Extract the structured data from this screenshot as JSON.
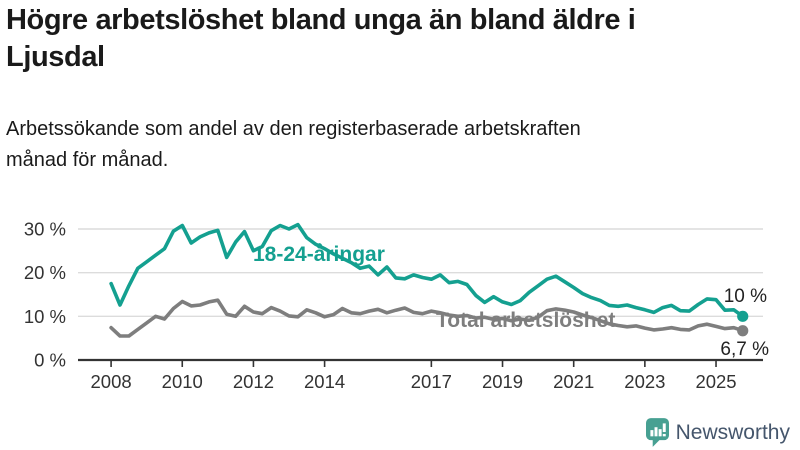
{
  "header": {
    "title": "Högre arbetslöshet bland unga än bland äldre i Ljusdal",
    "subtitle": "Arbetssökande som andel av den registerbaserade arbetskraften månad för månad."
  },
  "chart_data": {
    "type": "line",
    "unit": "%",
    "grid": "horizontal",
    "xlim": [
      2007.07,
      2026.32
    ],
    "ylim": [
      0,
      33
    ],
    "yticks": [
      {
        "value": 0,
        "label": "0 %"
      },
      {
        "value": 10,
        "label": "10 %"
      },
      {
        "value": 20,
        "label": "20 %"
      },
      {
        "value": 30,
        "label": "30 %"
      }
    ],
    "xticks": [
      {
        "value": 2008,
        "label": "2008"
      },
      {
        "value": 2010,
        "label": "2010"
      },
      {
        "value": 2012,
        "label": "2012"
      },
      {
        "value": 2014,
        "label": "2014"
      },
      {
        "value": 2017,
        "label": "2017"
      },
      {
        "value": 2019,
        "label": "2019"
      },
      {
        "value": 2021,
        "label": "2021"
      },
      {
        "value": 2023,
        "label": "2023"
      },
      {
        "value": 2025,
        "label": "2025"
      }
    ],
    "x": [
      2008,
      2008.25,
      2008.5,
      2008.75,
      2009,
      2009.25,
      2009.5,
      2009.75,
      2010,
      2010.25,
      2010.5,
      2010.75,
      2011,
      2011.25,
      2011.5,
      2011.75,
      2012,
      2012.25,
      2012.5,
      2012.75,
      2013,
      2013.25,
      2013.5,
      2013.75,
      2014,
      2014.25,
      2014.5,
      2014.75,
      2015,
      2015.25,
      2015.5,
      2015.75,
      2016,
      2016.25,
      2016.5,
      2016.75,
      2017,
      2017.25,
      2017.5,
      2017.75,
      2018,
      2018.25,
      2018.5,
      2018.75,
      2019,
      2019.25,
      2019.5,
      2019.75,
      2020,
      2020.25,
      2020.5,
      2020.75,
      2021,
      2021.25,
      2021.5,
      2021.75,
      2022,
      2022.25,
      2022.5,
      2022.75,
      2023,
      2023.25,
      2023.5,
      2023.75,
      2024,
      2024.25,
      2024.5,
      2024.75,
      2025,
      2025.25,
      2025.5,
      2025.75
    ],
    "series": [
      {
        "name": "18-24-åringar",
        "color": "#14a090",
        "end_label": "10 %",
        "end_value": 10.0,
        "values": [
          17.5,
          12.6,
          17.0,
          21.0,
          22.5,
          24.0,
          25.5,
          29.5,
          30.8,
          26.8,
          28.2,
          29.1,
          29.7,
          23.5,
          27.0,
          29.4,
          25.0,
          26.0,
          29.6,
          30.8,
          30.0,
          31.0,
          28.0,
          26.5,
          25.5,
          24.3,
          23.3,
          22.3,
          21.0,
          21.5,
          19.5,
          21.3,
          18.8,
          18.6,
          19.5,
          18.9,
          18.5,
          19.5,
          17.7,
          18.0,
          17.3,
          14.8,
          13.2,
          14.5,
          13.3,
          12.7,
          13.6,
          15.5,
          17.0,
          18.5,
          19.2,
          17.9,
          16.6,
          15.2,
          14.3,
          13.6,
          12.5,
          12.3,
          12.6,
          12.0,
          11.5,
          10.9,
          12.0,
          12.5,
          11.3,
          11.2,
          12.7,
          14.0,
          13.8,
          11.4,
          11.5,
          10.0
        ]
      },
      {
        "name": "Total arbetslöshet",
        "color": "#7e7e7e",
        "end_label": "6,7 %",
        "end_value": 6.7,
        "values": [
          7.4,
          5.5,
          5.5,
          7.0,
          8.5,
          10.0,
          9.4,
          11.8,
          13.4,
          12.4,
          12.6,
          13.3,
          13.7,
          10.5,
          10.0,
          12.3,
          11.0,
          10.6,
          12.0,
          11.2,
          10.1,
          9.9,
          11.5,
          10.8,
          9.9,
          10.4,
          11.8,
          10.8,
          10.6,
          11.2,
          11.6,
          10.8,
          11.4,
          11.9,
          10.9,
          10.6,
          11.2,
          10.8,
          10.3,
          10.0,
          10.2,
          9.6,
          9.8,
          9.3,
          9.5,
          9.0,
          9.4,
          9.1,
          9.8,
          11.3,
          11.7,
          11.4,
          11.0,
          10.3,
          9.7,
          9.0,
          8.3,
          7.9,
          7.6,
          7.8,
          7.3,
          6.9,
          7.1,
          7.4,
          7.0,
          6.9,
          7.8,
          8.2,
          7.7,
          7.2,
          7.4,
          6.7
        ]
      }
    ],
    "colors": {
      "grid": "#dcdcdc",
      "axis": "#333333",
      "tick_text": "#333333",
      "end_label_text": "#222222"
    }
  },
  "footer": {
    "brand": "Newsworthy",
    "brand_icon": "newsworthy-bubble-barchart-icon",
    "brand_icon_color": "#47a092",
    "brand_text_color": "#45566c"
  }
}
